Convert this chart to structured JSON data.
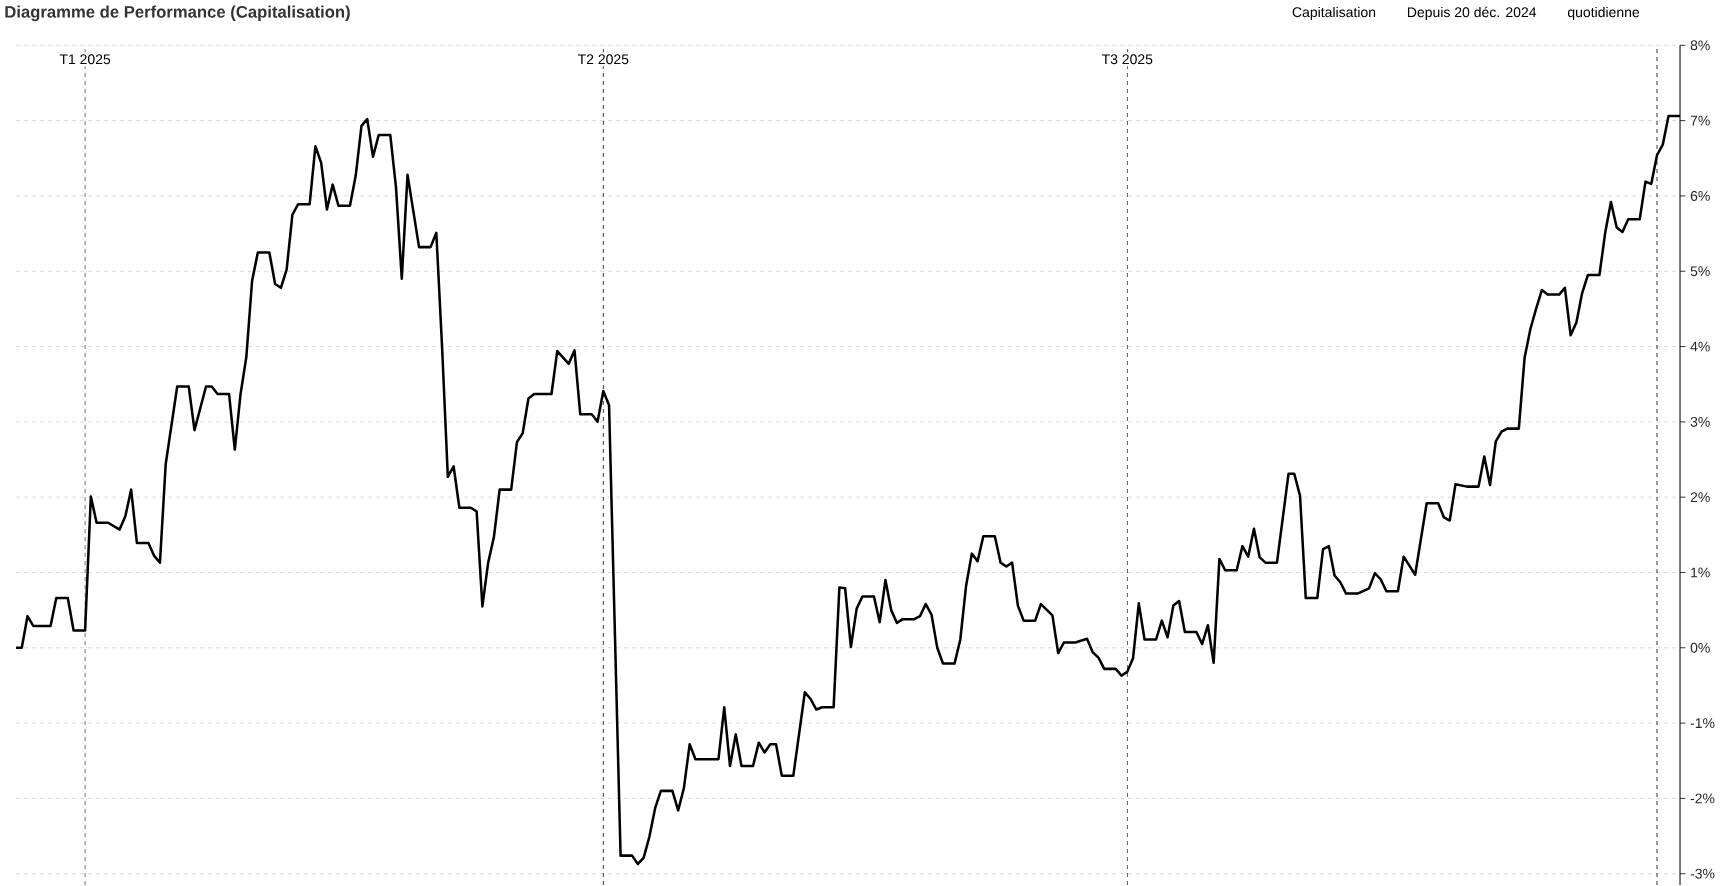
{
  "chart_data": {
    "type": "line",
    "title": "Diagramme de Performance (Capitalisation)",
    "annotations": [
      "Capitalisation",
      "Depuis 20 déc. 2024",
      "quotidienne"
    ],
    "x": [
      "2024-12-20",
      "2024-12-21",
      "2024-12-22",
      "2024-12-23",
      "2024-12-26",
      "2024-12-27",
      "2024-12-29",
      "2024-12-30",
      "2025-01-01",
      "2025-01-02",
      "2025-01-03",
      "2025-01-05",
      "2025-01-07",
      "2025-01-08",
      "2025-01-09",
      "2025-01-10",
      "2025-01-12",
      "2025-01-13",
      "2025-01-14",
      "2025-01-15",
      "2025-01-17",
      "2025-01-19",
      "2025-01-20",
      "2025-01-22",
      "2025-01-23",
      "2025-01-24",
      "2025-01-26",
      "2025-01-27",
      "2025-01-28",
      "2025-01-29",
      "2025-01-30",
      "2025-01-31",
      "2025-02-02",
      "2025-02-03",
      "2025-02-04",
      "2025-02-05",
      "2025-02-06",
      "2025-02-07",
      "2025-02-09",
      "2025-02-10",
      "2025-02-11",
      "2025-02-12",
      "2025-02-13",
      "2025-02-14",
      "2025-02-16",
      "2025-02-17",
      "2025-02-18",
      "2025-02-19",
      "2025-02-20",
      "2025-02-21",
      "2025-02-23",
      "2025-02-24",
      "2025-02-25",
      "2025-02-26",
      "2025-02-28",
      "2025-03-02",
      "2025-03-03",
      "2025-03-04",
      "2025-03-05",
      "2025-03-06",
      "2025-03-07",
      "2025-03-09",
      "2025-03-10",
      "2025-03-11",
      "2025-03-12",
      "2025-03-13",
      "2025-03-14",
      "2025-03-16",
      "2025-03-17",
      "2025-03-18",
      "2025-03-19",
      "2025-03-20",
      "2025-03-23",
      "2025-03-24",
      "2025-03-26",
      "2025-03-27",
      "2025-03-28",
      "2025-03-30",
      "2025-03-31",
      "2025-04-01",
      "2025-04-02",
      "2025-04-04",
      "2025-04-06",
      "2025-04-07",
      "2025-04-08",
      "2025-04-09",
      "2025-04-10",
      "2025-04-11",
      "2025-04-13",
      "2025-04-14",
      "2025-04-15",
      "2025-04-16",
      "2025-04-17",
      "2025-04-21",
      "2025-04-22",
      "2025-04-23",
      "2025-04-24",
      "2025-04-25",
      "2025-04-27",
      "2025-04-28",
      "2025-04-29",
      "2025-04-30",
      "2025-05-01",
      "2025-05-02",
      "2025-05-04",
      "2025-05-06",
      "2025-05-07",
      "2025-05-08",
      "2025-05-09",
      "2025-05-11",
      "2025-05-12",
      "2025-05-13",
      "2025-05-14",
      "2025-05-15",
      "2025-05-16",
      "2025-05-18",
      "2025-05-19",
      "2025-05-20",
      "2025-05-21",
      "2025-05-22",
      "2025-05-23",
      "2025-05-25",
      "2025-05-26",
      "2025-05-27",
      "2025-05-28",
      "2025-05-29",
      "2025-05-30",
      "2025-06-01",
      "2025-06-02",
      "2025-06-03",
      "2025-06-04",
      "2025-06-05",
      "2025-06-06",
      "2025-06-08",
      "2025-06-09",
      "2025-06-10",
      "2025-06-11",
      "2025-06-12",
      "2025-06-13",
      "2025-06-15",
      "2025-06-16",
      "2025-06-18",
      "2025-06-19",
      "2025-06-20",
      "2025-06-22",
      "2025-06-24",
      "2025-06-25",
      "2025-06-26",
      "2025-06-27",
      "2025-06-29",
      "2025-06-30",
      "2025-07-01",
      "2025-07-02",
      "2025-07-03",
      "2025-07-04",
      "2025-07-06",
      "2025-07-07",
      "2025-07-08",
      "2025-07-09",
      "2025-07-10",
      "2025-07-11",
      "2025-07-13",
      "2025-07-14",
      "2025-07-15",
      "2025-07-16",
      "2025-07-17",
      "2025-07-18",
      "2025-07-20",
      "2025-07-21",
      "2025-07-22",
      "2025-07-23",
      "2025-07-24",
      "2025-07-25",
      "2025-07-27",
      "2025-07-29",
      "2025-07-30",
      "2025-07-31",
      "2025-08-01",
      "2025-08-03",
      "2025-08-04",
      "2025-08-05",
      "2025-08-06",
      "2025-08-07",
      "2025-08-08",
      "2025-08-10",
      "2025-08-12",
      "2025-08-13",
      "2025-08-14",
      "2025-08-15",
      "2025-08-17",
      "2025-08-18",
      "2025-08-20",
      "2025-08-22",
      "2025-08-24",
      "2025-08-25",
      "2025-08-26",
      "2025-08-27",
      "2025-08-29",
      "2025-08-31",
      "2025-09-01",
      "2025-09-02",
      "2025-09-03",
      "2025-09-04",
      "2025-09-05",
      "2025-09-07",
      "2025-09-08",
      "2025-09-09",
      "2025-09-10",
      "2025-09-11",
      "2025-09-12",
      "2025-09-14",
      "2025-09-15",
      "2025-09-16",
      "2025-09-17",
      "2025-09-18",
      "2025-09-19",
      "2025-09-21",
      "2025-09-22",
      "2025-09-23",
      "2025-09-24",
      "2025-09-25",
      "2025-09-26",
      "2025-09-28",
      "2025-09-29",
      "2025-09-30",
      "2025-10-01",
      "2025-10-02",
      "2025-10-03",
      "2025-10-05"
    ],
    "values": [
      0.0,
      0.0,
      0.42,
      0.29,
      0.29,
      0.66,
      0.66,
      0.23,
      0.23,
      2.01,
      1.66,
      1.66,
      1.57,
      1.75,
      2.1,
      1.39,
      1.39,
      1.22,
      1.13,
      2.44,
      3.47,
      3.47,
      2.89,
      3.47,
      3.47,
      3.37,
      3.37,
      2.63,
      3.37,
      3.86,
      4.87,
      5.25,
      5.25,
      4.83,
      4.78,
      5.02,
      5.75,
      5.89,
      5.89,
      6.66,
      6.44,
      5.82,
      6.15,
      5.87,
      5.87,
      6.27,
      6.93,
      7.02,
      6.52,
      6.81,
      6.81,
      6.11,
      4.9,
      6.28,
      5.32,
      5.32,
      5.51,
      3.99,
      2.27,
      2.41,
      1.86,
      1.86,
      1.81,
      0.55,
      1.13,
      1.47,
      2.1,
      2.1,
      2.73,
      2.85,
      3.31,
      3.37,
      3.37,
      3.94,
      3.77,
      3.95,
      3.1,
      3.1,
      3.0,
      3.41,
      3.22,
      -2.76,
      -2.76,
      -2.87,
      -2.79,
      -2.51,
      -2.13,
      -1.9,
      -1.9,
      -2.16,
      -1.86,
      -1.28,
      -1.48,
      -1.48,
      -0.79,
      -1.57,
      -1.15,
      -1.57,
      -1.57,
      -1.26,
      -1.39,
      -1.28,
      -1.28,
      -1.7,
      -1.7,
      -0.59,
      -0.68,
      -0.82,
      -0.79,
      -0.79,
      0.8,
      0.79,
      0.01,
      0.52,
      0.68,
      0.68,
      0.34,
      0.9,
      0.5,
      0.33,
      0.38,
      0.38,
      0.42,
      0.58,
      0.44,
      0.0,
      -0.21,
      -0.21,
      0.11,
      0.82,
      1.25,
      1.15,
      1.48,
      1.48,
      1.13,
      1.08,
      1.13,
      0.56,
      0.36,
      0.36,
      0.58,
      0.43,
      -0.07,
      0.07,
      0.07,
      0.12,
      -0.06,
      -0.13,
      -0.28,
      -0.28,
      -0.37,
      -0.32,
      -0.14,
      0.59,
      0.11,
      0.11,
      0.36,
      0.14,
      0.56,
      0.62,
      0.21,
      0.21,
      0.05,
      0.3,
      -0.2,
      1.18,
      1.03,
      1.03,
      1.35,
      1.21,
      1.58,
      1.2,
      1.13,
      1.13,
      2.31,
      2.31,
      2.02,
      0.66,
      0.66,
      1.31,
      1.35,
      0.96,
      0.87,
      0.72,
      0.72,
      0.79,
      0.99,
      0.91,
      0.75,
      0.75,
      1.21,
      0.97,
      1.92,
      1.92,
      1.73,
      1.69,
      2.17,
      2.14,
      2.14,
      2.54,
      2.16,
      2.74,
      2.87,
      2.91,
      2.91,
      3.85,
      4.23,
      4.5,
      4.75,
      4.69,
      4.69,
      4.78,
      4.15,
      4.32,
      4.71,
      4.95,
      4.95,
      5.51,
      5.92,
      5.58,
      5.52,
      5.69,
      5.69,
      6.19,
      6.16,
      6.54,
      6.68,
      7.06,
      7.06
    ],
    "color": "#000000",
    "xlim": [
      "2024-12-20",
      "2025-10-05"
    ],
    "ylim": [
      -3.15,
      8
    ],
    "yticks": [
      {
        "value": -3,
        "label": "-3%"
      },
      {
        "value": -2,
        "label": "-2%"
      },
      {
        "value": -1,
        "label": "-1%"
      },
      {
        "value": 0,
        "label": "0%"
      },
      {
        "value": 1,
        "label": "1%"
      },
      {
        "value": 2,
        "label": "2%"
      },
      {
        "value": 3,
        "label": "3%"
      },
      {
        "value": 4,
        "label": "4%"
      },
      {
        "value": 5,
        "label": "5%"
      },
      {
        "value": 6,
        "label": "6%"
      },
      {
        "value": 7,
        "label": "7%"
      },
      {
        "value": 8,
        "label": "8%"
      }
    ],
    "xticks": [
      {
        "value": "2025-01-01",
        "label": "T1 2025"
      },
      {
        "value": "2025-04-01",
        "label": "T2 2025"
      },
      {
        "value": "2025-07-01",
        "label": "T3 2025"
      },
      {
        "value": "2025-10-01",
        "label": null
      }
    ],
    "grid": true
  }
}
